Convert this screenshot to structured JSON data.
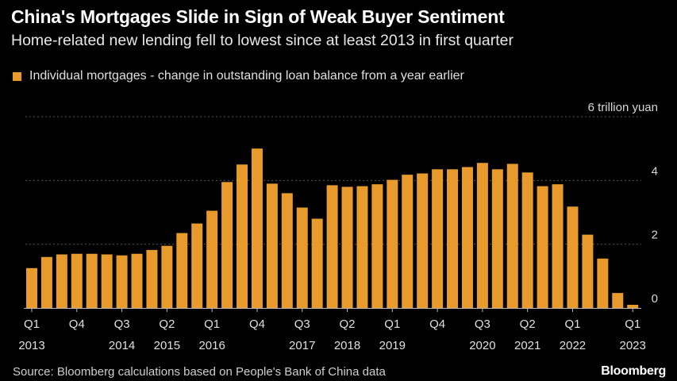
{
  "title": "China's Mortgages Slide in Sign of Weak Buyer Sentiment",
  "subtitle": "Home-related new lending fell to lowest since at least 2013 in first quarter",
  "legend": "Individual mortgages - change in outstanding loan balance from a year earlier",
  "source": "Source: Bloomberg calculations based on People's Bank of China data",
  "brand": "Bloomberg",
  "colors": {
    "bar": "#e99a2c",
    "background": "#000000",
    "grid": "#555555"
  },
  "chart_data": {
    "type": "bar",
    "unit": "6 trillion yuan",
    "ylim": [
      0,
      6
    ],
    "yticks": [
      0,
      2,
      4,
      6
    ],
    "grid": true,
    "legend_position": "top-left",
    "x_tick_labels": [
      {
        "index": 0,
        "quarter": "Q1",
        "year": "2013"
      },
      {
        "index": 3,
        "quarter": "Q4",
        "year": ""
      },
      {
        "index": 6,
        "quarter": "Q3",
        "year": "2014"
      },
      {
        "index": 9,
        "quarter": "Q2",
        "year": "2015"
      },
      {
        "index": 12,
        "quarter": "Q1",
        "year": "2016"
      },
      {
        "index": 15,
        "quarter": "Q4",
        "year": ""
      },
      {
        "index": 18,
        "quarter": "Q3",
        "year": "2017"
      },
      {
        "index": 21,
        "quarter": "Q2",
        "year": "2018"
      },
      {
        "index": 24,
        "quarter": "Q1",
        "year": "2019"
      },
      {
        "index": 27,
        "quarter": "Q4",
        "year": ""
      },
      {
        "index": 30,
        "quarter": "Q3",
        "year": "2020"
      },
      {
        "index": 33,
        "quarter": "Q2",
        "year": "2021"
      },
      {
        "index": 36,
        "quarter": "Q1",
        "year": "2022"
      },
      {
        "index": 40,
        "quarter": "Q1",
        "year": "2023"
      }
    ],
    "series": [
      {
        "values": [
          1.25,
          1.6,
          1.68,
          1.7,
          1.7,
          1.68,
          1.65,
          1.7,
          1.82,
          1.95,
          2.35,
          2.65,
          3.05,
          3.95,
          4.5,
          5.0,
          3.9,
          3.6,
          3.15,
          2.8,
          3.85,
          3.8,
          3.82,
          3.88,
          4.02,
          4.18,
          4.22,
          4.35,
          4.35,
          4.42,
          4.55,
          4.35,
          4.52,
          4.25,
          3.82,
          3.88,
          3.18,
          2.3,
          1.55,
          0.47,
          0.1
        ]
      }
    ]
  }
}
